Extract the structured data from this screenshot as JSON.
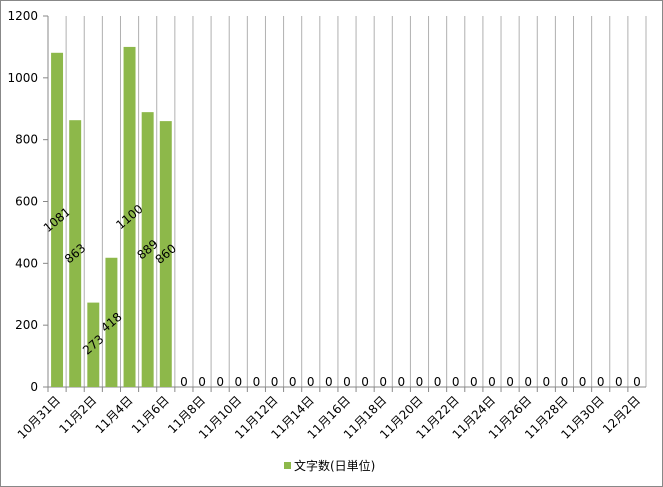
{
  "chart_data": {
    "type": "bar",
    "categories": [
      "10月31日",
      null,
      "11月2日",
      null,
      "11月4日",
      null,
      "11月6日",
      null,
      "11月8日",
      null,
      "11月10日",
      null,
      "11月12日",
      null,
      "11月14日",
      null,
      "11月16日",
      null,
      "11月18日",
      null,
      "11月20日",
      null,
      "11月22日",
      null,
      "11月24日",
      null,
      "11月26日",
      null,
      "11月28日",
      null,
      "11月30日",
      null,
      "12月2日"
    ],
    "series": [
      {
        "name": "文字数(日単位)",
        "color": "#8db84a",
        "values": [
          1081,
          863,
          273,
          418,
          1100,
          889,
          860,
          0,
          0,
          0,
          0,
          0,
          0,
          0,
          0,
          0,
          0,
          0,
          0,
          0,
          0,
          0,
          0,
          0,
          0,
          0,
          0,
          0,
          0,
          0,
          0,
          0,
          0
        ]
      }
    ],
    "ylim": [
      0,
      1200
    ],
    "yticks": [
      0,
      200,
      400,
      600,
      800,
      1000,
      1200
    ],
    "grid": true,
    "legend": "bottom"
  }
}
